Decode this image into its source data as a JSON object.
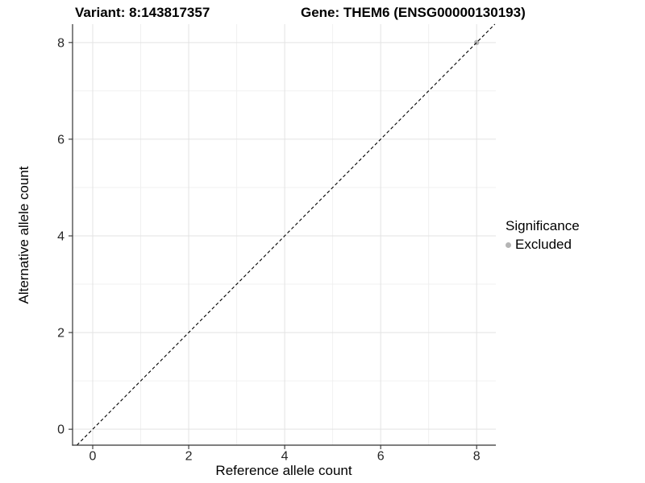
{
  "titles": {
    "left": "Variant: 8:143817357",
    "right": "Gene: THEM6 (ENSG00000130193)"
  },
  "axes": {
    "x_label": "Reference allele count",
    "y_label": "Alternative allele count"
  },
  "legend": {
    "title": "Significance",
    "items": [
      {
        "label": "Excluded",
        "color": "#b5b5b5"
      }
    ]
  },
  "chart_data": {
    "type": "scatter",
    "title": "Variant: 8:143817357  |  Gene: THEM6 (ENSG00000130193)",
    "xlabel": "Reference allele count",
    "ylabel": "Alternative allele count",
    "xlim": [
      -0.42,
      8.4
    ],
    "ylim": [
      -0.33,
      8.38
    ],
    "x_ticks": [
      0,
      2,
      4,
      6,
      8
    ],
    "y_ticks": [
      0,
      2,
      4,
      6,
      8
    ],
    "x_minor_ticks": [
      1,
      3,
      5,
      7
    ],
    "y_minor_ticks": [
      1,
      3,
      5,
      7
    ],
    "grid": true,
    "legend_position": "right",
    "reference_line": {
      "kind": "identity",
      "style": "dashed",
      "color": "#000000"
    },
    "series": [
      {
        "name": "Excluded",
        "color": "#b5b5b5",
        "points": [
          [
            8,
            8
          ]
        ]
      }
    ],
    "colors": {
      "grid_major": "#e3e3e3",
      "grid_minor": "#f0f0f0",
      "axis_line": "#333333",
      "tick_label": "#262626"
    }
  }
}
